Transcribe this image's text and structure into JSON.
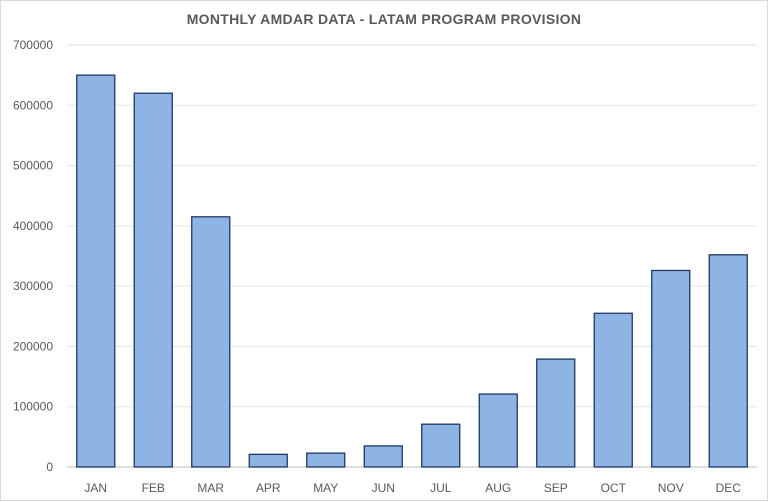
{
  "chart_data": {
    "type": "bar",
    "title": "MONTHLY AMDAR DATA - LATAM PROGRAM PROVISION",
    "categories": [
      "JAN",
      "FEB",
      "MAR",
      "APR",
      "MAY",
      "JUN",
      "JUL",
      "AUG",
      "SEP",
      "OCT",
      "NOV",
      "DEC"
    ],
    "values": [
      650000,
      620000,
      415000,
      21000,
      23000,
      35000,
      71000,
      121000,
      179000,
      255000,
      326000,
      352000
    ],
    "xlabel": "",
    "ylabel": "",
    "ylim": [
      0,
      700000
    ],
    "yticks": [
      "0",
      "100000",
      "200000",
      "300000",
      "400000",
      "500000",
      "600000",
      "700000"
    ],
    "grid": true,
    "legend": "none",
    "colors": {
      "bar_fill": "#8db4e2",
      "bar_stroke": "#1f3864",
      "grid": "#e6e6e6",
      "text": "#595959"
    }
  }
}
